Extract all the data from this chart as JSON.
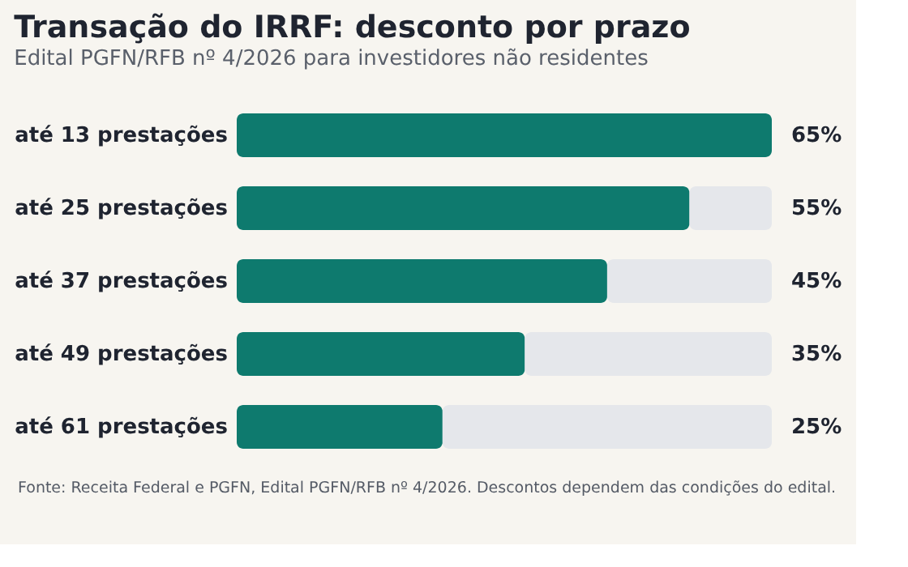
{
  "chart_data": {
    "type": "bar",
    "orientation": "horizontal",
    "stacked": true,
    "title": "Transação do IRRF: desconto por prazo",
    "subtitle": "Edital PGFN/RFB nº 4/2026 para investidores não residentes",
    "categories": [
      "até 13 prestações",
      "até 25 prestações",
      "até 37 prestações",
      "até 49 prestações",
      "até 61 prestações"
    ],
    "series": [
      {
        "color": "#0e7a6e",
        "values": [
          65,
          55,
          45,
          35,
          25
        ],
        "value_labels": [
          "65%",
          "55%",
          "45%",
          "35%",
          "25%"
        ]
      },
      {
        "color": "#e5e7eb",
        "values": [
          0,
          10,
          20,
          30,
          40
        ]
      }
    ],
    "xlim": [
      0,
      65
    ],
    "tick_labels": "y",
    "grid": false,
    "annotations": [
      "Fonte: Receita Federal e PGFN, Edital PGFN/RFB nº 4/2026. Descontos dependem das condições do edital."
    ]
  }
}
